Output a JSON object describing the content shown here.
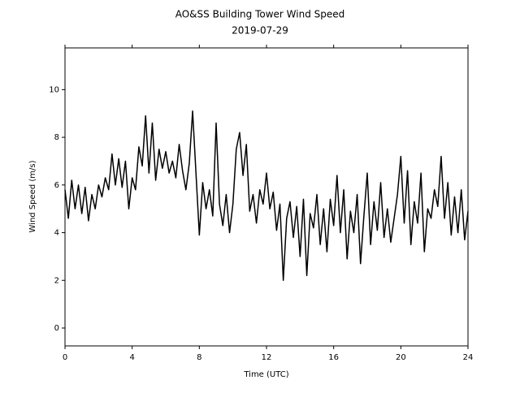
{
  "chart_data": {
    "type": "line",
    "title": "AO&SS Building Tower Wind Speed",
    "subtitle": "2019-07-29",
    "x_label": "Time (UTC)",
    "y_label": "Wind Speed (m/s)",
    "x": [
      0,
      0.2,
      0.4,
      0.6,
      0.8,
      1,
      1.2,
      1.4,
      1.6,
      1.8,
      2,
      2.2,
      2.4,
      2.6,
      2.8,
      3,
      3.2,
      3.4,
      3.6,
      3.8,
      4,
      4.2,
      4.4,
      4.6,
      4.8,
      5,
      5.2,
      5.4,
      5.6,
      5.8,
      6,
      6.2,
      6.4,
      6.6,
      6.8,
      7,
      7.2,
      7.4,
      7.6,
      7.8,
      8,
      8.2,
      8.4,
      8.6,
      8.8,
      9,
      9.2,
      9.4,
      9.6,
      9.8,
      10,
      10.2,
      10.4,
      10.6,
      10.8,
      11,
      11.2,
      11.4,
      11.6,
      11.8,
      12,
      12.2,
      12.4,
      12.6,
      12.8,
      13,
      13.2,
      13.4,
      13.6,
      13.8,
      14,
      14.2,
      14.4,
      14.6,
      14.8,
      15,
      15.2,
      15.4,
      15.6,
      15.8,
      16,
      16.2,
      16.4,
      16.6,
      16.8,
      17,
      17.2,
      17.4,
      17.6,
      17.8,
      18,
      18.2,
      18.4,
      18.6,
      18.8,
      19,
      19.2,
      19.4,
      19.6,
      19.8,
      20,
      20.2,
      20.4,
      20.6,
      20.8,
      21,
      21.2,
      21.4,
      21.6,
      21.8,
      22,
      22.2,
      22.4,
      22.6,
      22.8,
      23,
      23.2,
      23.4,
      23.6,
      23.8,
      24
    ],
    "series": [
      {
        "name": "Wind Speed",
        "color": "#000000",
        "values": [
          5.8,
          4.6,
          6.2,
          5.0,
          6.0,
          4.8,
          5.9,
          4.5,
          5.6,
          5.0,
          6.0,
          5.5,
          6.3,
          5.8,
          7.3,
          6.0,
          7.1,
          5.9,
          7.0,
          5.0,
          6.3,
          5.8,
          7.6,
          6.8,
          8.9,
          6.5,
          8.6,
          6.2,
          7.5,
          6.7,
          7.4,
          6.5,
          7.0,
          6.3,
          7.7,
          6.6,
          5.8,
          6.9,
          9.1,
          6.5,
          3.9,
          6.1,
          5.0,
          5.8,
          4.7,
          8.6,
          5.2,
          4.3,
          5.6,
          4.0,
          5.2,
          7.5,
          8.2,
          6.4,
          7.7,
          4.9,
          5.6,
          4.4,
          5.8,
          5.2,
          6.5,
          5.0,
          5.7,
          4.1,
          5.2,
          2.0,
          4.6,
          5.3,
          3.8,
          5.1,
          3.0,
          5.4,
          2.2,
          4.8,
          4.2,
          5.6,
          3.5,
          5.0,
          3.2,
          5.4,
          4.3,
          6.4,
          4.0,
          5.8,
          2.9,
          4.9,
          4.0,
          5.6,
          2.7,
          4.7,
          6.5,
          3.5,
          5.3,
          4.1,
          6.1,
          3.8,
          5.0,
          3.6,
          4.6,
          5.6,
          7.2,
          4.4,
          6.6,
          3.5,
          5.3,
          4.4,
          6.5,
          3.2,
          5.0,
          4.6,
          5.8,
          5.1,
          7.2,
          4.6,
          6.1,
          3.9,
          5.5,
          4.0,
          5.8,
          3.7,
          4.9
        ]
      }
    ],
    "xlim": [
      0,
      24
    ],
    "xticks": [
      0,
      4,
      8,
      12,
      16,
      20,
      24
    ],
    "ylim": [
      -0.75,
      11.75
    ],
    "yticks": [
      0,
      2,
      4,
      6,
      8,
      10
    ]
  }
}
